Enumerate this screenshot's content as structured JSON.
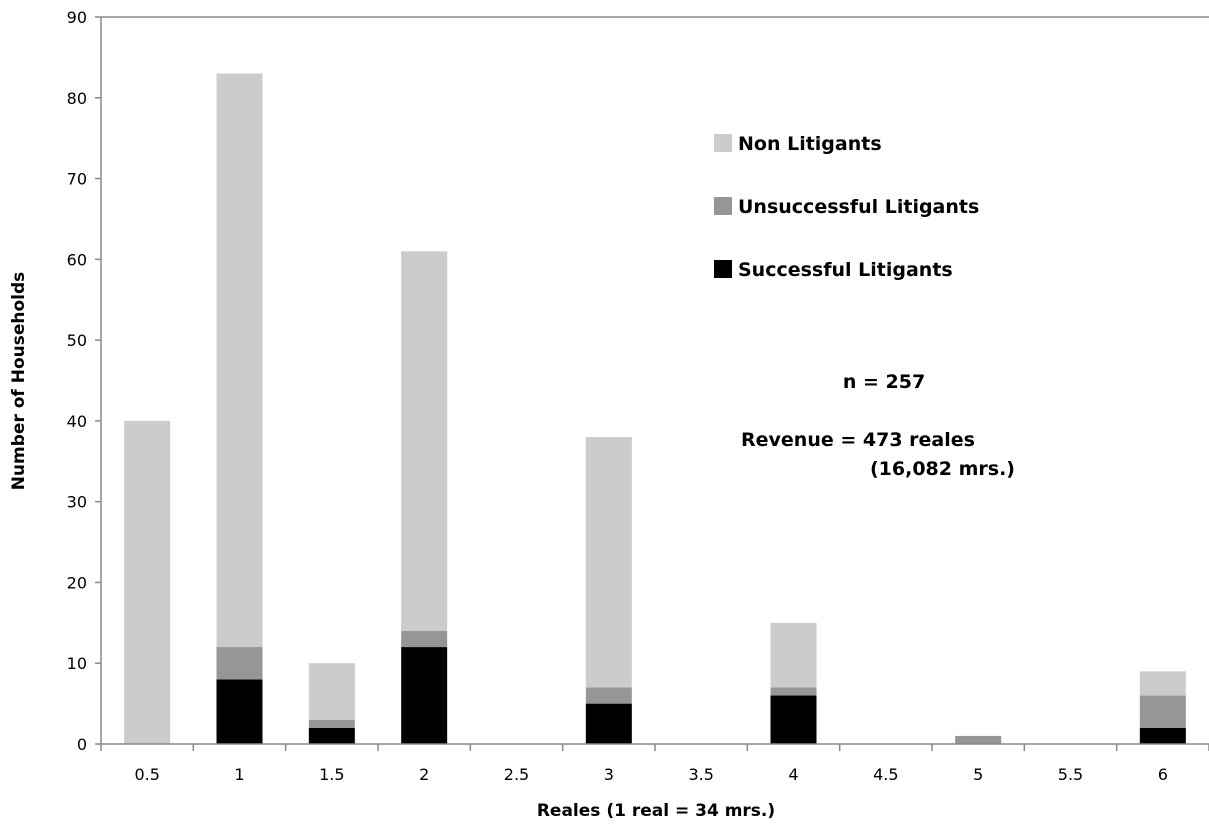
{
  "chart_data": {
    "type": "bar",
    "stacked": true,
    "categories": [
      "0.5",
      "1",
      "1.5",
      "2",
      "2.5",
      "3",
      "3.5",
      "4",
      "4.5",
      "5",
      "5.5",
      "6"
    ],
    "series": [
      {
        "name": "Successful Litigants",
        "color": "#000000",
        "values": [
          0,
          8,
          2,
          12,
          0,
          5,
          0,
          6,
          0,
          0,
          0,
          2
        ]
      },
      {
        "name": "Unsuccessful Litigants",
        "color": "#969696",
        "values": [
          0,
          4,
          1,
          2,
          0,
          2,
          0,
          1,
          0,
          1,
          0,
          4
        ]
      },
      {
        "name": "Non Litigants",
        "color": "#cccccc",
        "values": [
          40,
          71,
          7,
          47,
          0,
          31,
          0,
          8,
          0,
          0,
          0,
          3
        ]
      }
    ],
    "legend_order": [
      "Non Litigants",
      "Unsuccessful Litigants",
      "Successful Litigants"
    ],
    "legend_position": "upper-right",
    "xlabel": "Reales (1 real = 34 mrs.)",
    "ylabel": "Number of Households",
    "ylim": [
      0,
      90
    ],
    "yticks": [
      0,
      10,
      20,
      30,
      40,
      50,
      60,
      70,
      80,
      90
    ],
    "grid": false,
    "annotations": [
      "n = 257",
      "Revenue = 473 reales",
      "(16,082 mrs.)"
    ]
  }
}
